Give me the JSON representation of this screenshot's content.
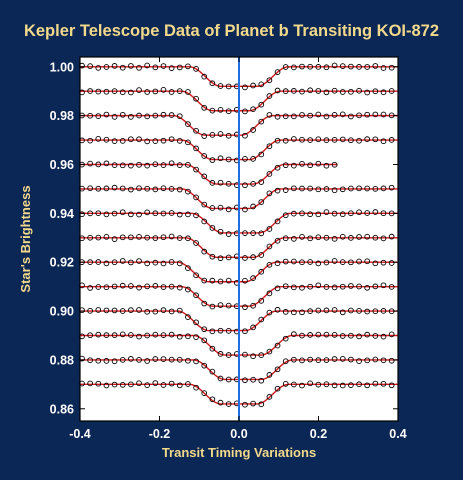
{
  "colors": {
    "background": "#0b2756",
    "plot_background": "#ffffff",
    "title": "#f3d98a",
    "tick_labels": "#ffffff",
    "model_curve": "#d01818",
    "observations": "#000000",
    "center_line": "#1f6fe0"
  },
  "chart_data": {
    "type": "scatter",
    "title": "Kepler Telescope Data of Planet b Transiting KOI-872",
    "xlabel": "Transit Timing Variations",
    "ylabel": "Star's Brightness",
    "xlim": [
      -0.4,
      0.4
    ],
    "ylim": [
      0.855,
      1.004
    ],
    "xticks": [
      "-0.4",
      "-0.2",
      "0.0",
      "0.2",
      "0.4"
    ],
    "xtick_values": [
      -0.4,
      -0.2,
      0.0,
      0.2,
      0.4
    ],
    "yticks": [
      "0.86",
      "0.88",
      "0.90",
      "0.92",
      "0.94",
      "0.96",
      "0.98",
      "1.00"
    ],
    "ytick_values": [
      0.86,
      0.88,
      0.9,
      0.92,
      0.94,
      0.96,
      0.98,
      1.0
    ],
    "vertical_line_x": 0.0,
    "transit_depth": 0.008,
    "series": [
      {
        "baseline": 1.0,
        "center": 0.0,
        "x_end": 0.4
      },
      {
        "baseline": 0.99,
        "center": -0.02,
        "x_end": 0.4
      },
      {
        "baseline": 0.98,
        "center": -0.04,
        "x_end": 0.4
      },
      {
        "baseline": 0.97,
        "center": -0.02,
        "x_end": 0.4
      },
      {
        "baseline": 0.96,
        "center": -0.01,
        "x_end": 0.25
      },
      {
        "baseline": 0.95,
        "center": -0.02,
        "x_end": 0.4
      },
      {
        "baseline": 0.94,
        "center": 0.005,
        "x_end": 0.4
      },
      {
        "baseline": 0.93,
        "center": -0.01,
        "x_end": 0.4
      },
      {
        "baseline": 0.92,
        "center": -0.03,
        "x_end": 0.4
      },
      {
        "baseline": 0.91,
        "center": -0.02,
        "x_end": 0.4
      },
      {
        "baseline": 0.9,
        "center": -0.03,
        "x_end": 0.4
      },
      {
        "baseline": 0.89,
        "center": 0.01,
        "x_end": 0.4
      },
      {
        "baseline": 0.88,
        "center": 0.01,
        "x_end": 0.4
      },
      {
        "baseline": 0.87,
        "center": 0.0,
        "x_end": 0.4
      }
    ]
  }
}
